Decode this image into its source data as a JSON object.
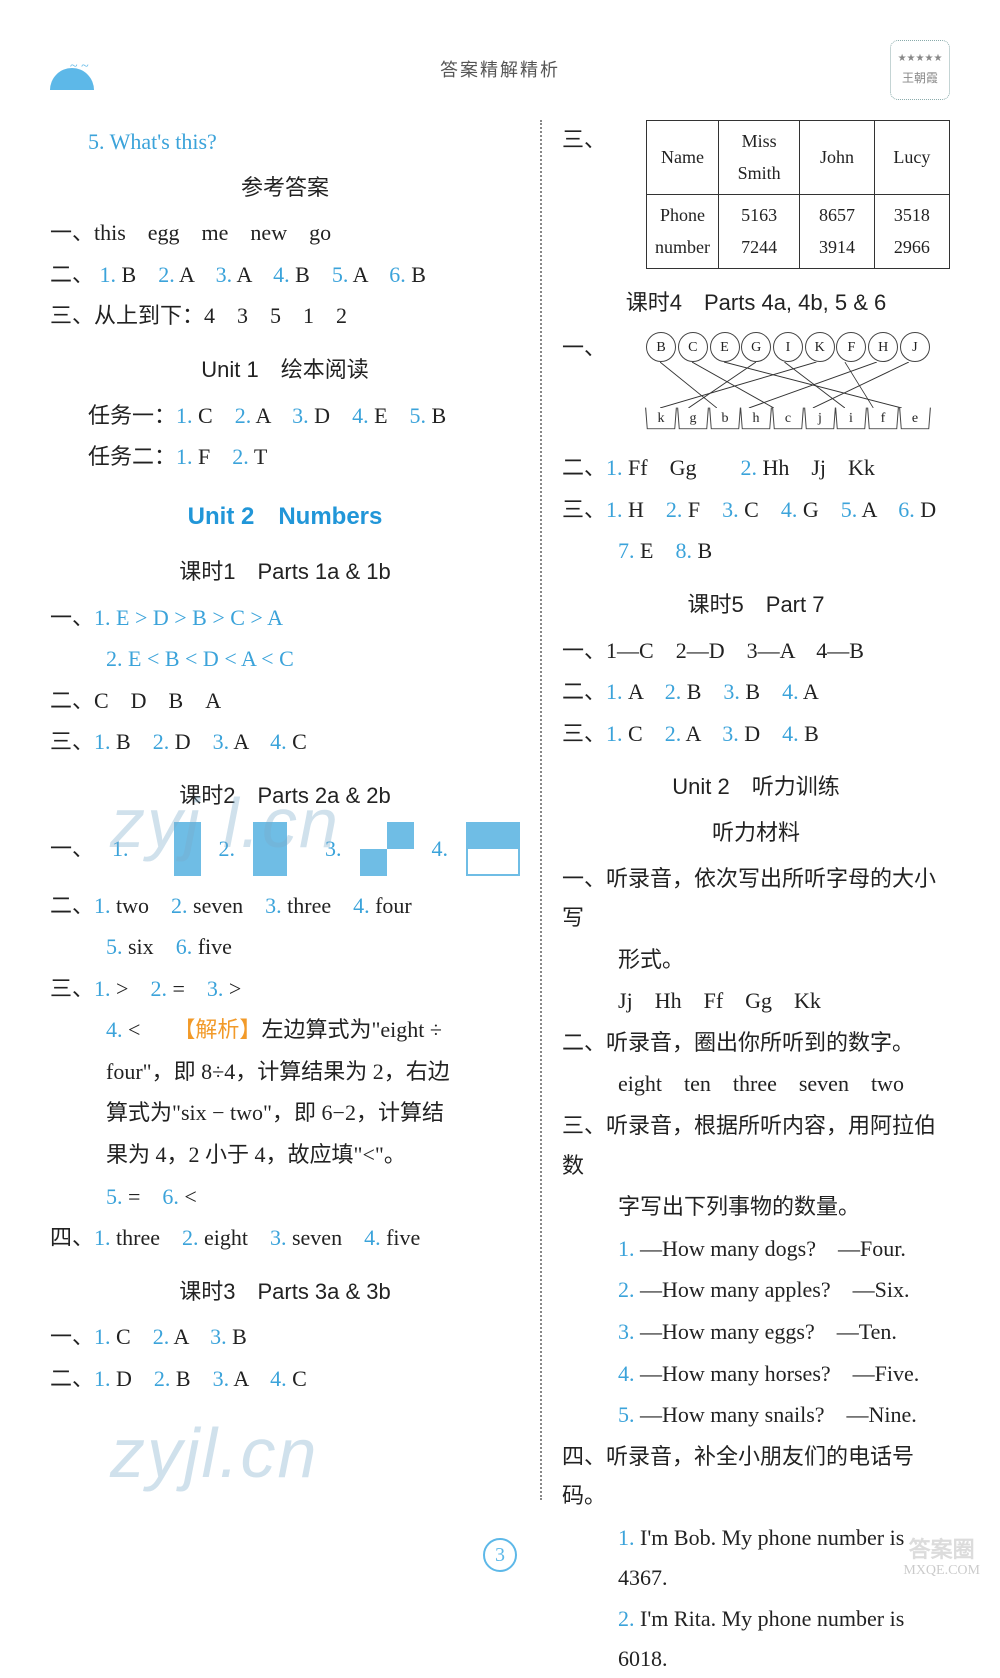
{
  "header": {
    "title": "答案精解精析"
  },
  "left": {
    "q5": "5. What's this?",
    "ans_head": "参考答案",
    "l1": "一、this　egg　me　new　go",
    "l2_pre": "二、",
    "l2_items": [
      [
        "1.",
        "B"
      ],
      [
        "2.",
        "A"
      ],
      [
        "3.",
        "A"
      ],
      [
        "4.",
        "B"
      ],
      [
        "5.",
        "A"
      ],
      [
        "6.",
        "B"
      ]
    ],
    "l3": "三、从上到下：4　3　5　1　2",
    "u1_read": "Unit 1　绘本阅读",
    "task1_pre": "任务一：",
    "task1": [
      [
        "1.",
        "C"
      ],
      [
        "2.",
        "A"
      ],
      [
        "3.",
        "D"
      ],
      [
        "4.",
        "E"
      ],
      [
        "5.",
        "B"
      ]
    ],
    "task2_pre": "任务二：",
    "task2": [
      [
        "1.",
        "F"
      ],
      [
        "2.",
        "T"
      ]
    ],
    "u2_head": "Unit 2　Numbers",
    "k1": "课时1　Parts 1a & 1b",
    "k1_l1a_pre": "一、",
    "k1_l1a": "1. E > D > B > C > A",
    "k1_l1b": "2. E < B < D < A < C",
    "k1_l2": "二、C　D　B　A",
    "k1_l3_pre": "三、",
    "k1_l3": [
      [
        "1.",
        "B"
      ],
      [
        "2.",
        "D"
      ],
      [
        "3.",
        "A"
      ],
      [
        "4.",
        "C"
      ]
    ],
    "k2": "课时2　Parts 2a & 2b",
    "k2_l1_pre": "一、",
    "k2_shape_labels": [
      "1.",
      "2.",
      "3.",
      "4."
    ],
    "k2_l2_pre": "二、",
    "k2_l2a": [
      [
        "1.",
        "two"
      ],
      [
        "2.",
        "seven"
      ],
      [
        "3.",
        "three"
      ],
      [
        "4.",
        "four"
      ]
    ],
    "k2_l2b": [
      [
        "5.",
        "six"
      ],
      [
        "6.",
        "five"
      ]
    ],
    "k2_l3_pre": "三、",
    "k2_l3a": [
      [
        "1.",
        ">"
      ],
      [
        "2.",
        "="
      ],
      [
        "3.",
        ">"
      ]
    ],
    "k2_l4n": "4.",
    "k2_l4": " < 　",
    "k2_explain_label": "【解析】",
    "k2_l4_txt1": "左边算式为\"eight ÷",
    "k2_l4_txt2": "four\"，即 8÷4，计算结果为 2，右边",
    "k2_l4_txt3": "算式为\"six − two\"，即 6−2，计算结",
    "k2_l4_txt4": "果为 4，2 小于 4，故应填\"<\"。",
    "k2_l3c": [
      [
        "5.",
        "="
      ],
      [
        "6.",
        "<"
      ]
    ],
    "k2_l4a_pre": "四、",
    "k2_l4a": [
      [
        "1.",
        "three"
      ],
      [
        "2.",
        "eight"
      ],
      [
        "3.",
        "seven"
      ],
      [
        "4.",
        "five"
      ]
    ],
    "k3": "课时3　Parts 3a & 3b",
    "k3_l1_pre": "一、",
    "k3_l1": [
      [
        "1.",
        "C"
      ],
      [
        "2.",
        "A"
      ],
      [
        "3.",
        "B"
      ]
    ],
    "k3_l2_pre": "二、",
    "k3_l2": [
      [
        "1.",
        "D"
      ],
      [
        "2.",
        "B"
      ],
      [
        "3.",
        "A"
      ],
      [
        "4.",
        "C"
      ]
    ]
  },
  "right": {
    "table_pre": "三、",
    "table": {
      "headers": [
        "Name",
        "Miss Smith",
        "John",
        "Lucy"
      ],
      "row_label": "Phone number",
      "row": [
        "5163 7244",
        "8657 3914",
        "3518 2966"
      ]
    },
    "k4": "课时4　Parts 4a, 4b, 5 & 6",
    "k4_l1_pre": "一、",
    "flowers": [
      "B",
      "C",
      "E",
      "G",
      "I",
      "K",
      "F",
      "H",
      "J"
    ],
    "pots": [
      "k",
      "g",
      "b",
      "h",
      "c",
      "j",
      "i",
      "f",
      "e"
    ],
    "k4_l2_pre": "二、",
    "k4_l2a": [
      [
        "1.",
        "Ff　Gg"
      ],
      [
        "2.",
        "Hh　Jj　Kk"
      ]
    ],
    "k4_l3_pre": "三、",
    "k4_l3a": [
      [
        "1.",
        "H"
      ],
      [
        "2.",
        "F"
      ],
      [
        "3.",
        "C"
      ],
      [
        "4.",
        "G"
      ],
      [
        "5.",
        "A"
      ],
      [
        "6.",
        "D"
      ]
    ],
    "k4_l3b": [
      [
        "7.",
        "E"
      ],
      [
        "8.",
        "B"
      ]
    ],
    "k5": "课时5　Part 7",
    "k5_l1": "一、1—C　2—D　3—A　4—B",
    "k5_l2_pre": "二、",
    "k5_l2": [
      [
        "1.",
        "A"
      ],
      [
        "2.",
        "B"
      ],
      [
        "3.",
        "B"
      ],
      [
        "4.",
        "A"
      ]
    ],
    "k5_l3_pre": "三、",
    "k5_l3": [
      [
        "1.",
        "C"
      ],
      [
        "2.",
        "A"
      ],
      [
        "3.",
        "D"
      ],
      [
        "4.",
        "B"
      ]
    ],
    "u2_listen": "Unit 2　听力训练",
    "listen_mat": "听力材料",
    "li1a": "一、听录音，依次写出所听字母的大小写",
    "li1b": "形式。",
    "li1c": "Jj　Hh　Ff　Gg　Kk",
    "li2a": "二、听录音，圈出你所听到的数字。",
    "li2b": "eight　ten　three　seven　two",
    "li3a": "三、听录音，根据所听内容，用阿拉伯数",
    "li3b": "字写出下列事物的数量。",
    "li3_items": [
      [
        "1.",
        "—How many dogs?　—Four."
      ],
      [
        "2.",
        "—How many apples?　—Six."
      ],
      [
        "3.",
        "—How many eggs?　—Ten."
      ],
      [
        "4.",
        "—How many horses?　—Five."
      ],
      [
        "5.",
        "—How many snails?　—Nine."
      ]
    ],
    "li4a": "四、听录音，补全小朋友们的电话号码。",
    "li4_items": [
      [
        "1.",
        "I'm Bob. My phone number is 4367."
      ],
      [
        "2.",
        "I'm Rita. My phone number is 6018."
      ]
    ]
  },
  "page_number": "3",
  "watermarks": {
    "w1": "zyj l.cn",
    "w2": "zyjl.cn",
    "corner1": "答案圈",
    "corner2": "MXQE.COM"
  },
  "colors": {
    "num_blue": "#3ba3da",
    "heading_blue": "#2196d8",
    "explain_orange": "#f29a29",
    "shape_fill": "#6fbde5"
  }
}
